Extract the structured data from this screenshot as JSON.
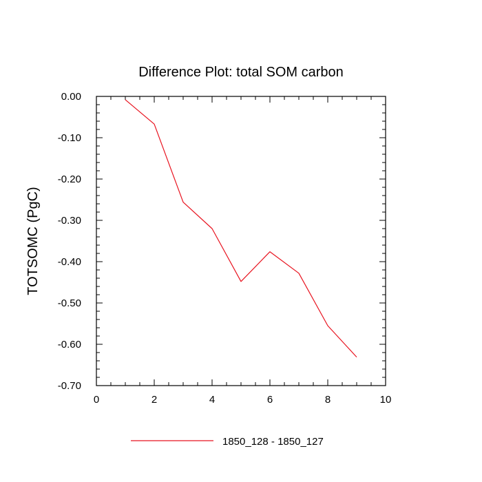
{
  "chart_data": {
    "type": "line",
    "title": "Difference Plot: total SOM carbon",
    "xlabel": "",
    "ylabel": "TOTSOMC  (PgC)",
    "xlim": [
      0,
      10
    ],
    "ylim": [
      -0.7,
      0.0
    ],
    "x_ticks": [
      0,
      2,
      4,
      6,
      8,
      10
    ],
    "x_tick_labels": [
      "0",
      "2",
      "4",
      "6",
      "8",
      "10"
    ],
    "y_ticks": [
      0.0,
      -0.1,
      -0.2,
      -0.3,
      -0.4,
      -0.5,
      -0.6,
      -0.7
    ],
    "y_tick_labels": [
      "0.00",
      "-0.10",
      "-0.20",
      "-0.30",
      "-0.40",
      "-0.50",
      "-0.60",
      "-0.70"
    ],
    "grid": false,
    "legend_position": "bottom",
    "series": [
      {
        "name": "1850_128 - 1850_127",
        "color": "#e8121e",
        "x": [
          1,
          2,
          3,
          4,
          5,
          6,
          7,
          8,
          9
        ],
        "y": [
          -0.008,
          -0.067,
          -0.256,
          -0.32,
          -0.448,
          -0.376,
          -0.428,
          -0.555,
          -0.631
        ]
      }
    ]
  }
}
